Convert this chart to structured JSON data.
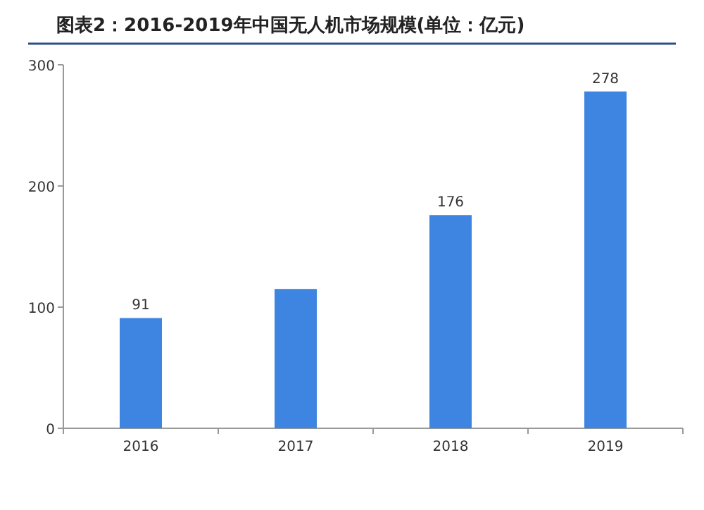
{
  "chart_data": {
    "type": "bar",
    "title": "图表2：2016-2019年中国无人机市场规模(单位：亿元)",
    "categories": [
      "2016",
      "2017",
      "2018",
      "2019"
    ],
    "values": [
      91,
      115,
      176,
      278
    ],
    "value_labels": [
      "91",
      null,
      "176",
      "278"
    ],
    "color": "#3d85e0",
    "ylim": [
      0,
      300
    ],
    "yticks": [
      0,
      100,
      200,
      300
    ],
    "grid": false
  }
}
